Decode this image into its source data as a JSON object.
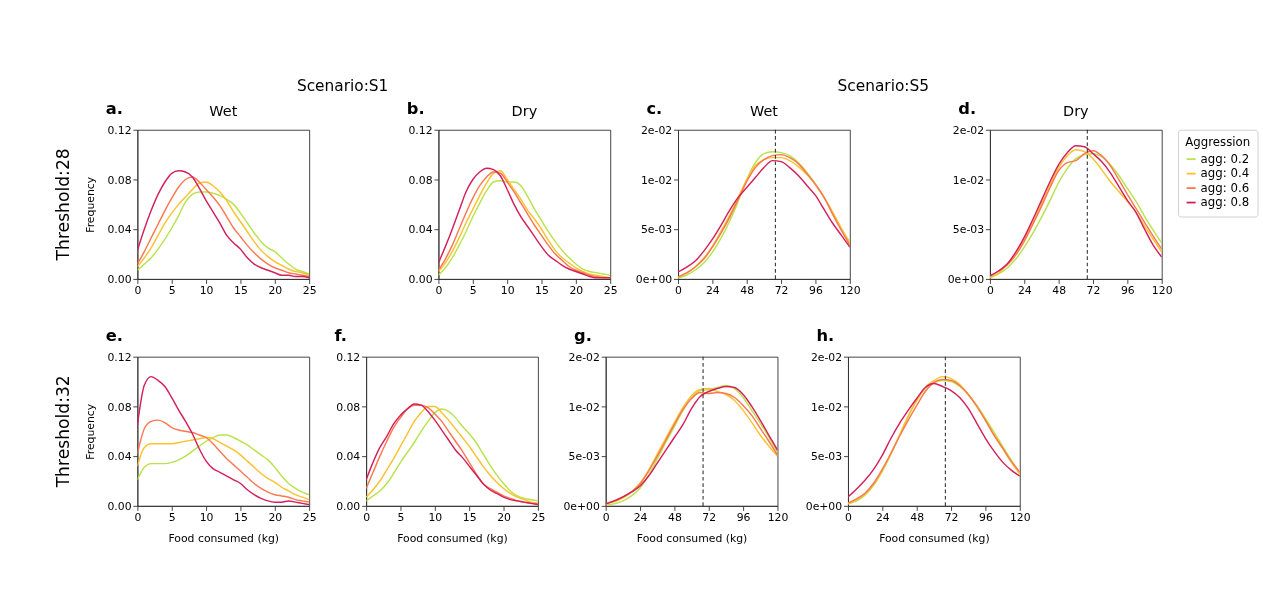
{
  "chart_data": [
    {
      "type": "line",
      "title": "Wet",
      "ylabel": "Frequency",
      "annotations": [
        "a.",
        "Scenario:S1",
        "Threshold:28"
      ],
      "grid": false,
      "xlim": [
        0,
        25
      ],
      "xticks": [
        0,
        5,
        10,
        15,
        20,
        25
      ],
      "ylim": [
        0,
        0.12
      ],
      "yticks": [
        {
          "value": 0,
          "label": "0.00"
        },
        {
          "value": 0.04,
          "label": "0.04"
        },
        {
          "value": 0.08,
          "label": "0.08"
        },
        {
          "value": 0.12,
          "label": "0.12"
        }
      ],
      "x": [
        0,
        1,
        2,
        3,
        4,
        5,
        6,
        7,
        8,
        9,
        10,
        11,
        12,
        13,
        14,
        15,
        16,
        17,
        18,
        19,
        20,
        21,
        22,
        23,
        24,
        25
      ],
      "series": [
        {
          "color": "#b8e34c",
          "values": [
            0.007,
            0.012,
            0.017,
            0.024,
            0.032,
            0.041,
            0.051,
            0.062,
            0.068,
            0.07,
            0.07,
            0.069,
            0.067,
            0.064,
            0.06,
            0.053,
            0.045,
            0.037,
            0.03,
            0.025,
            0.022,
            0.017,
            0.012,
            0.008,
            0.006,
            0.004
          ]
        },
        {
          "color": "#fcc12e",
          "values": [
            0.01,
            0.017,
            0.025,
            0.035,
            0.045,
            0.053,
            0.06,
            0.066,
            0.072,
            0.077,
            0.078,
            0.075,
            0.07,
            0.063,
            0.054,
            0.046,
            0.038,
            0.03,
            0.023,
            0.018,
            0.014,
            0.011,
            0.008,
            0.006,
            0.005,
            0.003
          ]
        },
        {
          "color": "#fb7852",
          "values": [
            0.012,
            0.022,
            0.033,
            0.044,
            0.055,
            0.065,
            0.074,
            0.08,
            0.082,
            0.078,
            0.072,
            0.066,
            0.059,
            0.05,
            0.041,
            0.034,
            0.027,
            0.021,
            0.016,
            0.012,
            0.009,
            0.007,
            0.005,
            0.004,
            0.003,
            0.002
          ]
        },
        {
          "color": "#d3215b",
          "values": [
            0.023,
            0.04,
            0.055,
            0.068,
            0.078,
            0.085,
            0.087,
            0.086,
            0.082,
            0.073,
            0.063,
            0.054,
            0.045,
            0.035,
            0.029,
            0.024,
            0.017,
            0.012,
            0.009,
            0.007,
            0.005,
            0.003,
            0.003,
            0.002,
            0.002,
            0.001
          ]
        }
      ]
    },
    {
      "type": "line",
      "title": "Dry",
      "annotations": [
        "b."
      ],
      "grid": false,
      "xlim": [
        0,
        25
      ],
      "xticks": [
        0,
        5,
        10,
        15,
        20,
        25
      ],
      "ylim": [
        0,
        0.12
      ],
      "yticks": [
        {
          "value": 0,
          "label": "0.00"
        },
        {
          "value": 0.04,
          "label": "0.04"
        },
        {
          "value": 0.08,
          "label": "0.08"
        },
        {
          "value": 0.12,
          "label": "0.12"
        }
      ],
      "x": [
        0,
        1,
        2,
        3,
        4,
        5,
        6,
        7,
        8,
        9,
        10,
        11,
        12,
        13,
        14,
        15,
        16,
        17,
        18,
        19,
        20,
        21,
        22,
        23,
        24,
        25
      ],
      "series": [
        {
          "color": "#b8e34c",
          "values": [
            0.003,
            0.009,
            0.017,
            0.027,
            0.038,
            0.05,
            0.061,
            0.071,
            0.078,
            0.079,
            0.078,
            0.078,
            0.075,
            0.066,
            0.056,
            0.047,
            0.038,
            0.03,
            0.023,
            0.017,
            0.012,
            0.008,
            0.006,
            0.005,
            0.004,
            0.003
          ]
        },
        {
          "color": "#fcc12e",
          "values": [
            0.006,
            0.013,
            0.022,
            0.033,
            0.045,
            0.056,
            0.067,
            0.077,
            0.085,
            0.087,
            0.08,
            0.072,
            0.064,
            0.055,
            0.048,
            0.04,
            0.031,
            0.023,
            0.017,
            0.013,
            0.009,
            0.006,
            0.004,
            0.003,
            0.002,
            0.001
          ]
        },
        {
          "color": "#fb7852",
          "values": [
            0.007,
            0.016,
            0.027,
            0.04,
            0.053,
            0.065,
            0.075,
            0.082,
            0.086,
            0.085,
            0.078,
            0.07,
            0.061,
            0.052,
            0.043,
            0.035,
            0.027,
            0.02,
            0.015,
            0.01,
            0.007,
            0.005,
            0.003,
            0.002,
            0.001,
            0.001
          ]
        },
        {
          "color": "#d3215b",
          "values": [
            0.013,
            0.026,
            0.04,
            0.055,
            0.07,
            0.08,
            0.086,
            0.089,
            0.088,
            0.083,
            0.072,
            0.06,
            0.05,
            0.042,
            0.034,
            0.026,
            0.019,
            0.015,
            0.011,
            0.008,
            0.006,
            0.004,
            0.002,
            0.001,
            0.001,
            0.001
          ]
        }
      ]
    },
    {
      "type": "line",
      "title": "Wet",
      "annotations": [
        "c.",
        "Scenario:S5"
      ],
      "grid": false,
      "xlim": [
        0,
        120
      ],
      "xticks": [
        0,
        24,
        48,
        72,
        96,
        120
      ],
      "ylim": [
        0,
        0.015
      ],
      "yticks": [
        {
          "value": 0,
          "label": "0e+00"
        },
        {
          "value": 0.005,
          "label": "5e-03"
        },
        {
          "value": 0.01,
          "label": "1e-02"
        },
        {
          "value": 0.015,
          "label": "2e-02"
        }
      ],
      "ref_lines": [
        {
          "axis": "x",
          "value": 68,
          "color": "#333333",
          "line_style": "dashed"
        }
      ],
      "x": [
        0,
        6,
        12,
        18,
        24,
        30,
        36,
        42,
        48,
        54,
        60,
        66,
        72,
        78,
        84,
        90,
        96,
        102,
        108,
        114,
        120
      ],
      "series": [
        {
          "color": "#b8e34c",
          "values": [
            0.0001,
            0.0004,
            0.0009,
            0.0016,
            0.0027,
            0.0041,
            0.0058,
            0.0078,
            0.01,
            0.0117,
            0.0126,
            0.0128,
            0.0127,
            0.0124,
            0.0117,
            0.0107,
            0.0095,
            0.0082,
            0.0067,
            0.0051,
            0.0037
          ]
        },
        {
          "color": "#fcc12e",
          "values": [
            0.0002,
            0.0006,
            0.0012,
            0.0021,
            0.0033,
            0.0048,
            0.0064,
            0.0082,
            0.01,
            0.0114,
            0.012,
            0.0122,
            0.0122,
            0.0119,
            0.0113,
            0.0105,
            0.0095,
            0.0082,
            0.0067,
            0.0051,
            0.0036
          ]
        },
        {
          "color": "#fb7852",
          "values": [
            0.0002,
            0.0006,
            0.0012,
            0.002,
            0.0032,
            0.0046,
            0.0062,
            0.008,
            0.0098,
            0.0112,
            0.012,
            0.0124,
            0.0125,
            0.0122,
            0.0116,
            0.0106,
            0.0095,
            0.0082,
            0.0065,
            0.0049,
            0.0034
          ]
        },
        {
          "color": "#d3215b",
          "values": [
            0.0007,
            0.0012,
            0.0018,
            0.0028,
            0.004,
            0.0054,
            0.0069,
            0.0082,
            0.0092,
            0.0102,
            0.0112,
            0.0119,
            0.0118,
            0.0112,
            0.0104,
            0.0094,
            0.0084,
            0.007,
            0.0056,
            0.0044,
            0.0032
          ]
        }
      ]
    },
    {
      "type": "line",
      "title": "Dry",
      "annotations": [
        "d."
      ],
      "grid": false,
      "legend": "right",
      "legend_title": "Aggression",
      "xlim": [
        0,
        120
      ],
      "xticks": [
        0,
        24,
        48,
        72,
        96,
        120
      ],
      "ylim": [
        0,
        0.015
      ],
      "yticks": [
        {
          "value": 0,
          "label": "0e+00"
        },
        {
          "value": 0.005,
          "label": "5e-03"
        },
        {
          "value": 0.01,
          "label": "1e-02"
        },
        {
          "value": 0.015,
          "label": "2e-02"
        }
      ],
      "ref_lines": [
        {
          "axis": "x",
          "value": 68,
          "color": "#333333",
          "line_style": "dashed"
        }
      ],
      "x": [
        0,
        6,
        12,
        18,
        24,
        30,
        36,
        42,
        48,
        54,
        60,
        66,
        72,
        78,
        84,
        90,
        96,
        102,
        108,
        114,
        120
      ],
      "series": [
        {
          "name": "agg: 0.2",
          "color": "#b8e34c",
          "values": [
            0.0001,
            0.0005,
            0.0011,
            0.002,
            0.0032,
            0.0046,
            0.0062,
            0.0079,
            0.0097,
            0.0111,
            0.0121,
            0.0125,
            0.0126,
            0.0123,
            0.0115,
            0.0104,
            0.0091,
            0.0078,
            0.0063,
            0.0049,
            0.0036
          ]
        },
        {
          "name": "agg: 0.4",
          "color": "#fcc12e",
          "values": [
            0.0002,
            0.0006,
            0.0015,
            0.0026,
            0.004,
            0.0057,
            0.0076,
            0.0095,
            0.0112,
            0.0124,
            0.013,
            0.0128,
            0.0121,
            0.011,
            0.0098,
            0.0088,
            0.0078,
            0.0067,
            0.0053,
            0.004,
            0.0027
          ]
        },
        {
          "name": "agg: 0.6",
          "color": "#fb7852",
          "values": [
            0.0003,
            0.0008,
            0.0014,
            0.0024,
            0.0038,
            0.0055,
            0.0073,
            0.0092,
            0.0109,
            0.0117,
            0.0119,
            0.0126,
            0.0129,
            0.0124,
            0.0114,
            0.01,
            0.0085,
            0.0071,
            0.0057,
            0.0043,
            0.003
          ]
        },
        {
          "name": "agg: 0.8",
          "color": "#d3215b",
          "values": [
            0.0003,
            0.0008,
            0.0015,
            0.0027,
            0.0042,
            0.006,
            0.0079,
            0.0098,
            0.0115,
            0.0127,
            0.0134,
            0.0133,
            0.0126,
            0.0118,
            0.0107,
            0.0093,
            0.0079,
            0.0067,
            0.005,
            0.0034,
            0.0022
          ]
        }
      ]
    },
    {
      "type": "line",
      "xlabel": "Food consumed (kg)",
      "ylabel": "Frequency",
      "annotations": [
        "e.",
        "Threshold:32"
      ],
      "grid": false,
      "xlim": [
        0,
        25
      ],
      "xticks": [
        0,
        5,
        10,
        15,
        20,
        25
      ],
      "ylim": [
        0,
        0.12
      ],
      "yticks": [
        {
          "value": 0,
          "label": "0.00"
        },
        {
          "value": 0.04,
          "label": "0.04"
        },
        {
          "value": 0.08,
          "label": "0.08"
        },
        {
          "value": 0.12,
          "label": "0.12"
        }
      ],
      "x": [
        0,
        1,
        2,
        3,
        4,
        5,
        6,
        7,
        8,
        9,
        10,
        11,
        12,
        13,
        14,
        15,
        16,
        17,
        18,
        19,
        20,
        21,
        22,
        23,
        24,
        25
      ],
      "series": [
        {
          "color": "#b8e34c",
          "values": [
            0.021,
            0.031,
            0.034,
            0.034,
            0.034,
            0.035,
            0.037,
            0.04,
            0.044,
            0.048,
            0.052,
            0.055,
            0.057,
            0.057,
            0.055,
            0.052,
            0.049,
            0.045,
            0.041,
            0.037,
            0.031,
            0.024,
            0.018,
            0.014,
            0.011,
            0.009
          ]
        },
        {
          "color": "#fcc12e",
          "values": [
            0.032,
            0.047,
            0.05,
            0.05,
            0.05,
            0.05,
            0.051,
            0.052,
            0.053,
            0.054,
            0.055,
            0.054,
            0.051,
            0.048,
            0.045,
            0.041,
            0.036,
            0.031,
            0.026,
            0.022,
            0.019,
            0.015,
            0.012,
            0.009,
            0.007,
            0.005
          ]
        },
        {
          "color": "#fb7852",
          "values": [
            0.042,
            0.062,
            0.068,
            0.069,
            0.067,
            0.063,
            0.061,
            0.06,
            0.059,
            0.057,
            0.055,
            0.05,
            0.044,
            0.038,
            0.033,
            0.028,
            0.023,
            0.018,
            0.014,
            0.011,
            0.009,
            0.008,
            0.007,
            0.005,
            0.004,
            0.003
          ]
        },
        {
          "color": "#d3215b",
          "values": [
            0.065,
            0.097,
            0.104,
            0.101,
            0.096,
            0.087,
            0.077,
            0.068,
            0.058,
            0.046,
            0.036,
            0.03,
            0.027,
            0.024,
            0.021,
            0.018,
            0.013,
            0.009,
            0.006,
            0.004,
            0.003,
            0.003,
            0.004,
            0.003,
            0.002,
            0.001
          ]
        }
      ]
    },
    {
      "type": "line",
      "xlabel": "Food consumed (kg)",
      "annotations": [
        "f."
      ],
      "grid": false,
      "xlim": [
        0,
        25
      ],
      "xticks": [
        0,
        5,
        10,
        15,
        20,
        25
      ],
      "ylim": [
        0,
        0.12
      ],
      "yticks": [
        {
          "value": 0,
          "label": "0.00"
        },
        {
          "value": 0.04,
          "label": "0.04"
        },
        {
          "value": 0.08,
          "label": "0.08"
        },
        {
          "value": 0.12,
          "label": "0.12"
        }
      ],
      "x": [
        0,
        1,
        2,
        3,
        4,
        5,
        6,
        7,
        8,
        9,
        10,
        11,
        12,
        13,
        14,
        15,
        16,
        17,
        18,
        19,
        20,
        21,
        22,
        23,
        24,
        25
      ],
      "series": [
        {
          "color": "#b8e34c",
          "values": [
            0.004,
            0.008,
            0.012,
            0.018,
            0.026,
            0.035,
            0.043,
            0.051,
            0.06,
            0.068,
            0.075,
            0.078,
            0.076,
            0.071,
            0.064,
            0.058,
            0.051,
            0.042,
            0.033,
            0.025,
            0.018,
            0.012,
            0.008,
            0.006,
            0.005,
            0.004
          ]
        },
        {
          "color": "#fcc12e",
          "values": [
            0.007,
            0.013,
            0.02,
            0.029,
            0.038,
            0.048,
            0.058,
            0.068,
            0.075,
            0.08,
            0.08,
            0.075,
            0.069,
            0.062,
            0.055,
            0.048,
            0.04,
            0.032,
            0.025,
            0.019,
            0.014,
            0.01,
            0.007,
            0.005,
            0.003,
            0.002
          ]
        },
        {
          "color": "#fb7852",
          "values": [
            0.014,
            0.027,
            0.04,
            0.052,
            0.063,
            0.071,
            0.078,
            0.081,
            0.081,
            0.079,
            0.074,
            0.068,
            0.06,
            0.052,
            0.044,
            0.035,
            0.026,
            0.018,
            0.014,
            0.011,
            0.008,
            0.006,
            0.004,
            0.003,
            0.002,
            0.002
          ]
        },
        {
          "color": "#d3215b",
          "values": [
            0.021,
            0.035,
            0.047,
            0.056,
            0.066,
            0.073,
            0.078,
            0.082,
            0.081,
            0.076,
            0.069,
            0.061,
            0.053,
            0.045,
            0.039,
            0.032,
            0.025,
            0.018,
            0.013,
            0.01,
            0.007,
            0.005,
            0.004,
            0.003,
            0.002,
            0.001
          ]
        }
      ]
    },
    {
      "type": "line",
      "xlabel": "Food consumed (kg)",
      "annotations": [
        "g."
      ],
      "grid": false,
      "xlim": [
        0,
        120
      ],
      "xticks": [
        0,
        24,
        48,
        72,
        96,
        120
      ],
      "ylim": [
        0,
        0.015
      ],
      "yticks": [
        {
          "value": 0,
          "label": "0e+00"
        },
        {
          "value": 0.005,
          "label": "5e-03"
        },
        {
          "value": 0.01,
          "label": "1e-02"
        },
        {
          "value": 0.015,
          "label": "2e-02"
        }
      ],
      "ref_lines": [
        {
          "axis": "x",
          "value": 68,
          "color": "#333333",
          "line_style": "dashed"
        }
      ],
      "x": [
        0,
        6,
        12,
        18,
        24,
        30,
        36,
        42,
        48,
        54,
        60,
        66,
        72,
        78,
        84,
        90,
        96,
        102,
        108,
        114,
        120
      ],
      "series": [
        {
          "color": "#b8e34c",
          "values": [
            0.0001,
            0.0002,
            0.0005,
            0.001,
            0.0018,
            0.0031,
            0.0047,
            0.0064,
            0.008,
            0.0096,
            0.0109,
            0.0116,
            0.0117,
            0.0119,
            0.0121,
            0.0118,
            0.0109,
            0.0096,
            0.0083,
            0.0069,
            0.0054
          ]
        },
        {
          "color": "#fcc12e",
          "values": [
            0.0002,
            0.0004,
            0.0008,
            0.0014,
            0.0023,
            0.0036,
            0.0052,
            0.0068,
            0.0084,
            0.0099,
            0.0111,
            0.0117,
            0.0118,
            0.0115,
            0.0112,
            0.0106,
            0.0096,
            0.0084,
            0.0071,
            0.006,
            0.005
          ]
        },
        {
          "color": "#fb7852",
          "values": [
            0.0002,
            0.0005,
            0.0009,
            0.0014,
            0.0022,
            0.0035,
            0.005,
            0.0066,
            0.0082,
            0.0097,
            0.0108,
            0.0114,
            0.0113,
            0.0114,
            0.0113,
            0.0109,
            0.0101,
            0.0091,
            0.0078,
            0.0065,
            0.0051
          ]
        },
        {
          "color": "#d3215b",
          "values": [
            0.0002,
            0.0005,
            0.0009,
            0.0014,
            0.002,
            0.003,
            0.0043,
            0.0056,
            0.0069,
            0.0082,
            0.0098,
            0.011,
            0.0115,
            0.0118,
            0.012,
            0.0119,
            0.0112,
            0.01,
            0.0086,
            0.0071,
            0.0056
          ]
        }
      ]
    },
    {
      "type": "line",
      "xlabel": "Food consumed (kg)",
      "annotations": [
        "h."
      ],
      "grid": false,
      "xlim": [
        0,
        120
      ],
      "xticks": [
        0,
        24,
        48,
        72,
        96,
        120
      ],
      "ylim": [
        0,
        0.015
      ],
      "yticks": [
        {
          "value": 0,
          "label": "0e+00"
        },
        {
          "value": 0.005,
          "label": "5e-03"
        },
        {
          "value": 0.01,
          "label": "1e-02"
        },
        {
          "value": 0.015,
          "label": "2e-02"
        }
      ],
      "ref_lines": [
        {
          "axis": "x",
          "value": 68,
          "color": "#333333",
          "line_style": "dashed"
        }
      ],
      "x": [
        0,
        6,
        12,
        18,
        24,
        30,
        36,
        42,
        48,
        54,
        60,
        66,
        72,
        78,
        84,
        90,
        96,
        102,
        108,
        114,
        120
      ],
      "series": [
        {
          "color": "#b8e34c",
          "values": [
            0.0002,
            0.0005,
            0.0011,
            0.0021,
            0.0035,
            0.0052,
            0.0071,
            0.009,
            0.0106,
            0.0118,
            0.0124,
            0.0126,
            0.0125,
            0.012,
            0.0112,
            0.0101,
            0.0088,
            0.0074,
            0.006,
            0.0046,
            0.0033
          ]
        },
        {
          "color": "#fcc12e",
          "values": [
            0.0002,
            0.0006,
            0.0012,
            0.0022,
            0.0036,
            0.0053,
            0.0071,
            0.009,
            0.0106,
            0.0119,
            0.0126,
            0.013,
            0.0128,
            0.0122,
            0.0112,
            0.01,
            0.0086,
            0.0072,
            0.0058,
            0.0044,
            0.0032
          ]
        },
        {
          "color": "#fb7852",
          "values": [
            0.0003,
            0.0007,
            0.0013,
            0.0023,
            0.0037,
            0.0053,
            0.007,
            0.0086,
            0.0101,
            0.0115,
            0.0124,
            0.0127,
            0.0126,
            0.0121,
            0.0112,
            0.01,
            0.0086,
            0.0071,
            0.0058,
            0.0045,
            0.0034
          ]
        },
        {
          "color": "#d3215b",
          "values": [
            0.0009,
            0.0017,
            0.0026,
            0.0037,
            0.0051,
            0.0068,
            0.0083,
            0.0096,
            0.0108,
            0.0119,
            0.0123,
            0.012,
            0.0116,
            0.0109,
            0.0098,
            0.0083,
            0.0068,
            0.0055,
            0.0044,
            0.0036,
            0.003
          ]
        }
      ]
    }
  ]
}
